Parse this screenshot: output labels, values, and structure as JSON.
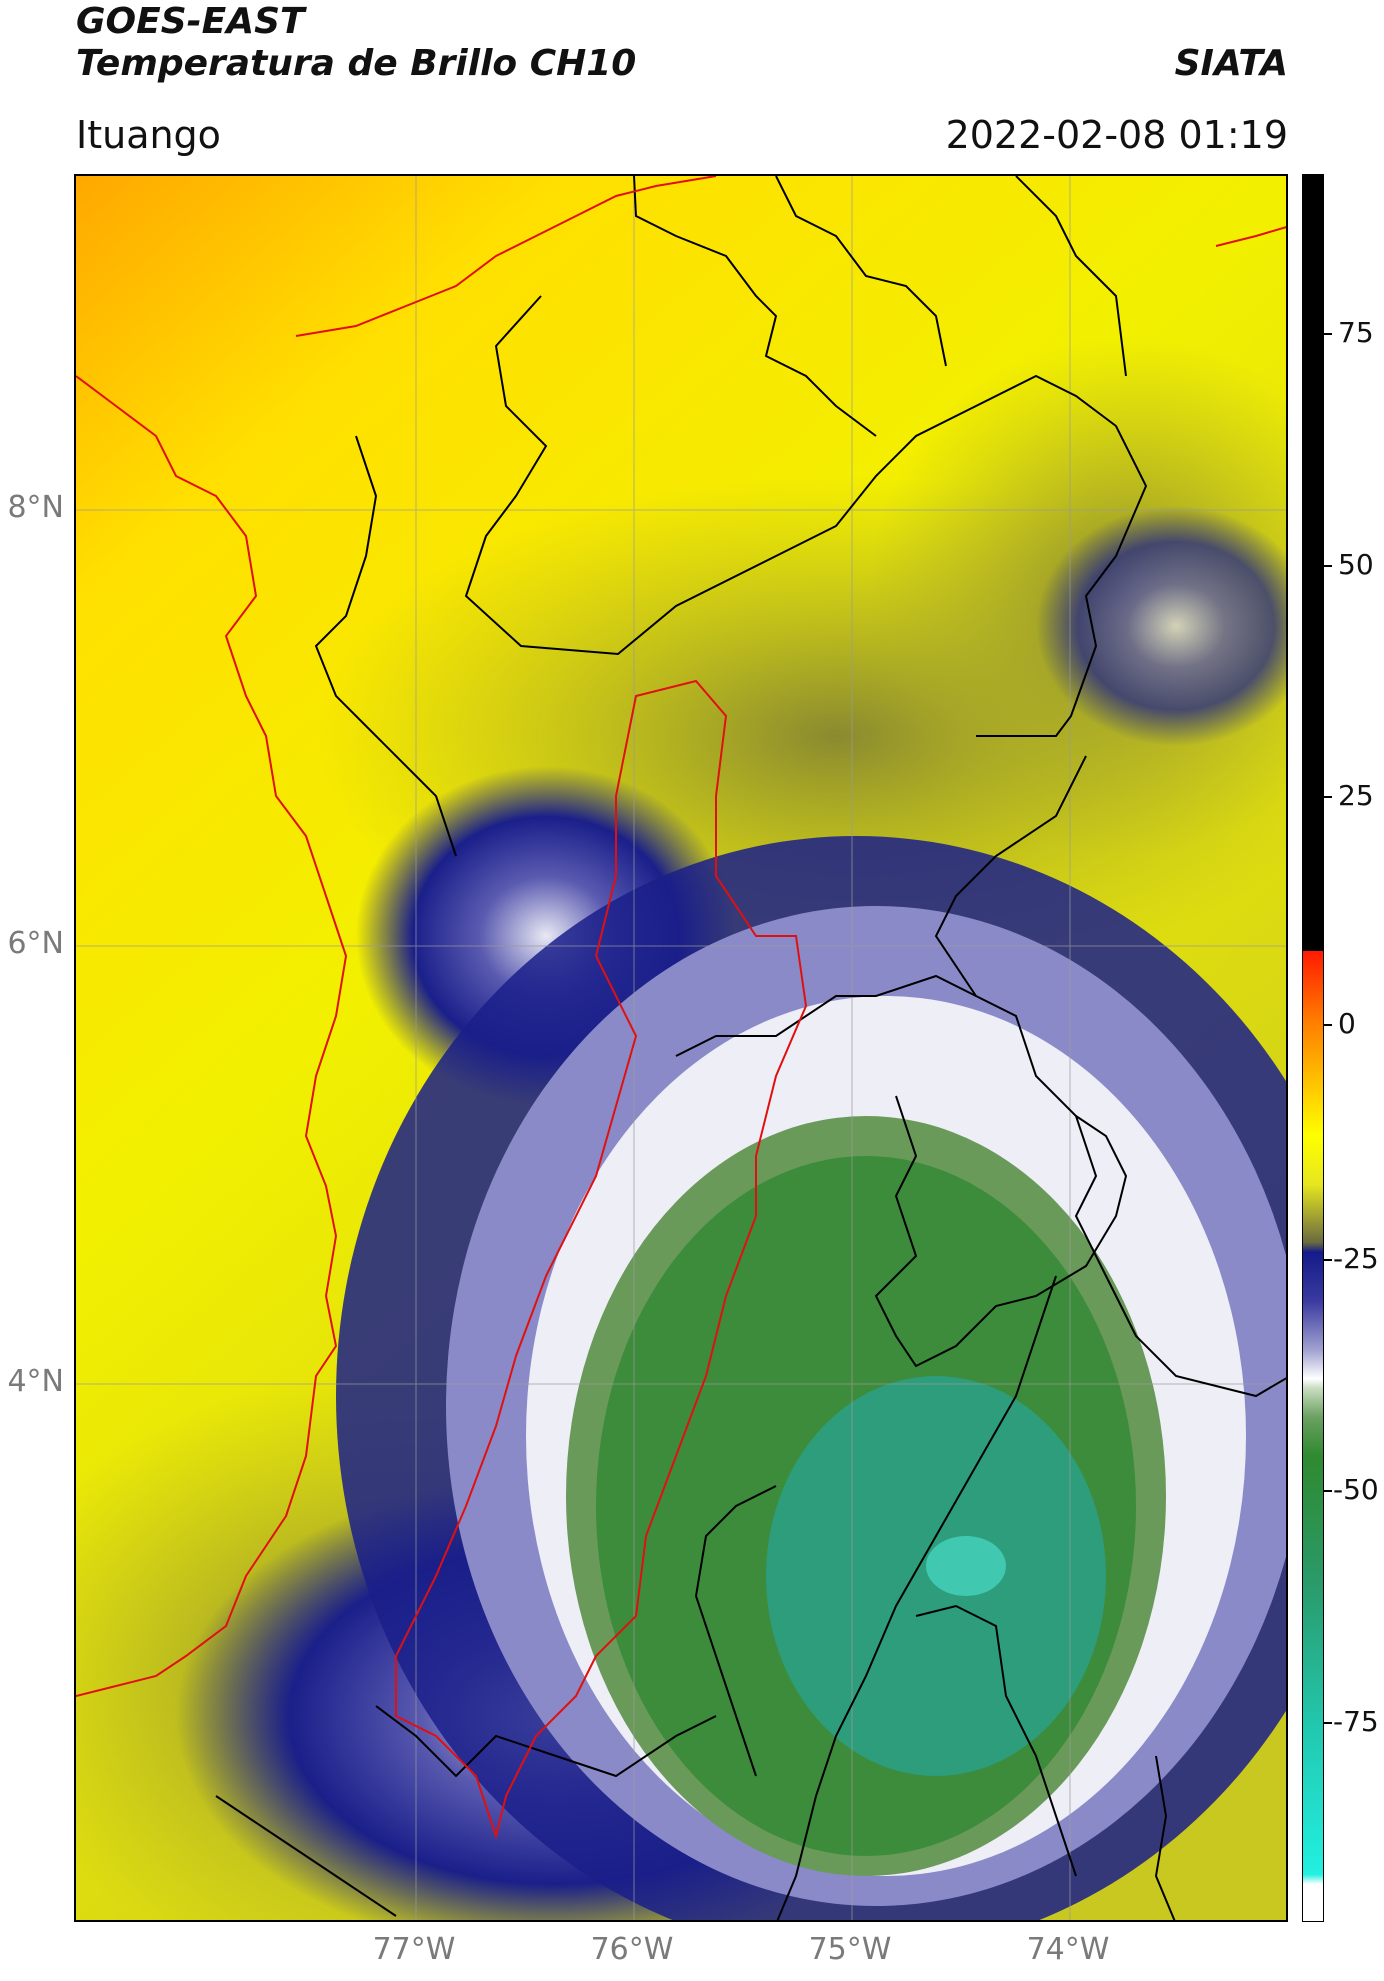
{
  "header": {
    "title": "GOES-EAST",
    "subtitle": "Temperatura de Brillo CH10",
    "organization": "SIATA",
    "region": "Ituango",
    "datetime": "2022-02-08 01:19"
  },
  "map": {
    "lat_labels": [
      "8°N",
      "6°N",
      "4°N"
    ],
    "lon_labels": [
      "77°W",
      "76°W",
      "75°W",
      "74°W"
    ],
    "coastline_color": "#e01010",
    "admin_border_color": "#000000",
    "grid_color": "#9a9a9a"
  },
  "colorbar": {
    "ticks": [
      "75",
      "50",
      "25",
      "0",
      "-25",
      "-50",
      "-75"
    ],
    "colors": [
      "#000000",
      "#ff2000",
      "#ff9a00",
      "#ffff00",
      "#a8a830",
      "#141a8a",
      "#ffffff",
      "#2f8a2f",
      "#22e0d0",
      "#ffffff"
    ]
  }
}
